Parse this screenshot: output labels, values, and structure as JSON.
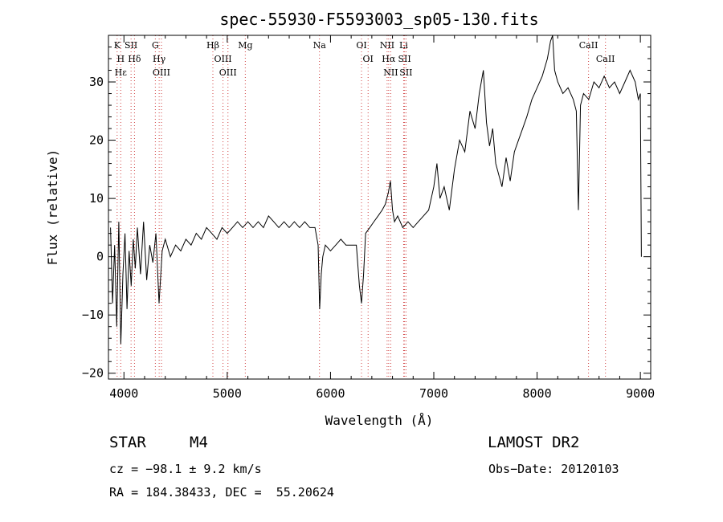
{
  "chart_data": {
    "type": "line",
    "title": "spec-55930-F5593003_sp05-130.fits",
    "xlabel": "Wavelength (Å)",
    "ylabel": "Flux (relative)",
    "xlim": [
      3850,
      9100
    ],
    "ylim": [
      -21,
      38
    ],
    "xticks": [
      4000,
      5000,
      6000,
      7000,
      8000,
      9000
    ],
    "yticks": [
      -20,
      -10,
      0,
      10,
      20,
      30
    ],
    "grid": false,
    "series": [
      {
        "color": "#000000",
        "x": [
          3870,
          3890,
          3910,
          3930,
          3950,
          3970,
          3990,
          4010,
          4030,
          4050,
          4070,
          4090,
          4110,
          4130,
          4160,
          4190,
          4220,
          4250,
          4280,
          4310,
          4340,
          4370,
          4400,
          4450,
          4500,
          4550,
          4600,
          4650,
          4700,
          4750,
          4800,
          4850,
          4900,
          4950,
          5000,
          5050,
          5100,
          5150,
          5200,
          5250,
          5300,
          5350,
          5400,
          5450,
          5500,
          5550,
          5600,
          5650,
          5700,
          5750,
          5800,
          5850,
          5880,
          5895,
          5910,
          5925,
          5950,
          6000,
          6050,
          6100,
          6150,
          6200,
          6250,
          6280,
          6300,
          6320,
          6340,
          6380,
          6420,
          6460,
          6500,
          6530,
          6560,
          6580,
          6600,
          6620,
          6650,
          6700,
          6750,
          6800,
          6850,
          6900,
          6950,
          7000,
          7030,
          7060,
          7100,
          7150,
          7200,
          7250,
          7300,
          7350,
          7400,
          7440,
          7480,
          7510,
          7540,
          7570,
          7600,
          7630,
          7660,
          7700,
          7740,
          7780,
          7820,
          7860,
          7900,
          7950,
          8000,
          8050,
          8100,
          8130,
          8150,
          8170,
          8200,
          8250,
          8300,
          8350,
          8380,
          8400,
          8420,
          8450,
          8500,
          8550,
          8600,
          8650,
          8700,
          8750,
          8800,
          8850,
          8900,
          8950,
          8980,
          9000,
          9010
        ],
        "y": [
          5,
          -8,
          2,
          -12,
          6,
          -15,
          -3,
          4,
          -9,
          1,
          -5,
          3,
          -2,
          5,
          -3,
          6,
          -4,
          2,
          -1,
          4,
          -8,
          1,
          3,
          0,
          2,
          1,
          3,
          2,
          4,
          3,
          5,
          4,
          3,
          5,
          4,
          5,
          6,
          5,
          6,
          5,
          6,
          5,
          7,
          6,
          5,
          6,
          5,
          6,
          5,
          6,
          5,
          5,
          2,
          -9,
          -3,
          0,
          2,
          1,
          2,
          3,
          2,
          2,
          2,
          -5,
          -8,
          -3,
          4,
          5,
          6,
          7,
          8,
          9,
          11,
          13,
          8,
          6,
          7,
          5,
          6,
          5,
          6,
          7,
          8,
          12,
          16,
          10,
          12,
          8,
          15,
          20,
          18,
          25,
          22,
          28,
          32,
          23,
          19,
          22,
          16,
          14,
          12,
          17,
          13,
          18,
          20,
          22,
          24,
          27,
          29,
          31,
          34,
          37,
          38,
          32,
          30,
          28,
          29,
          27,
          25,
          8,
          26,
          28,
          27,
          30,
          29,
          31,
          29,
          30,
          28,
          30,
          32,
          30,
          27,
          28,
          0
        ]
      }
    ],
    "lines": [
      {
        "x": 3934,
        "labels": [
          "K"
        ]
      },
      {
        "x": 3969,
        "labels": [
          "H",
          "Hε"
        ]
      },
      {
        "x": 4069,
        "labels": [
          "SII"
        ]
      },
      {
        "x": 4102,
        "labels": [
          "Hδ"
        ]
      },
      {
        "x": 4304,
        "labels": [
          "G"
        ]
      },
      {
        "x": 4341,
        "labels": [
          "Hγ"
        ]
      },
      {
        "x": 4363,
        "labels": [
          "OIII"
        ]
      },
      {
        "x": 4861,
        "labels": [
          "Hβ"
        ]
      },
      {
        "x": 4959,
        "labels": [
          "OIII"
        ]
      },
      {
        "x": 5007,
        "labels": [
          "OIII"
        ]
      },
      {
        "x": 5175,
        "labels": [
          "Mg"
        ]
      },
      {
        "x": 5893,
        "labels": [
          "Na"
        ]
      },
      {
        "x": 6300,
        "labels": [
          "OI"
        ]
      },
      {
        "x": 6364,
        "labels": [
          "OI"
        ]
      },
      {
        "x": 6548,
        "labels": [
          "NII"
        ]
      },
      {
        "x": 6563,
        "labels": [
          "Hα"
        ]
      },
      {
        "x": 6583,
        "labels": [
          "NII"
        ]
      },
      {
        "x": 6708,
        "labels": [
          "Li"
        ]
      },
      {
        "x": 6717,
        "labels": [
          "SII"
        ]
      },
      {
        "x": 6731,
        "labels": [
          "SII"
        ]
      },
      {
        "x": 8498,
        "labels": [
          "CaII"
        ]
      },
      {
        "x": 8662,
        "labels": [
          "CaII"
        ]
      }
    ]
  },
  "info": {
    "object_class": "STAR",
    "subclass": "M4",
    "survey": "LAMOST DR2",
    "cz": "cz = −98.1 ± 9.2 km/s",
    "obs_date": "Obs−Date: 20120103",
    "radec": "RA = 184.38433, DEC =  55.20624"
  }
}
